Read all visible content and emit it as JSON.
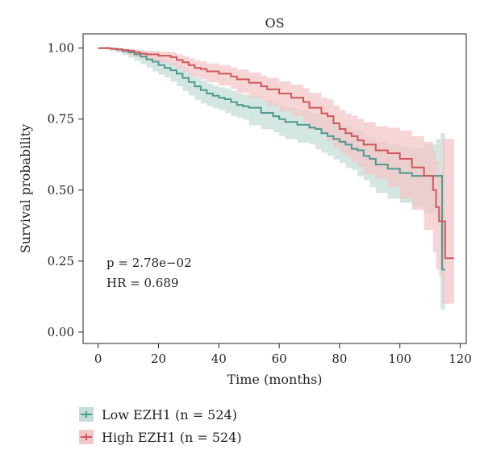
{
  "chart_data": {
    "type": "line",
    "subtype": "kaplan-meier",
    "title": "OS",
    "xlabel": "Time (months)",
    "ylabel": "Survival probability",
    "xlim": [
      -5,
      122
    ],
    "ylim": [
      -0.04,
      1.05
    ],
    "xticks": [
      0,
      20,
      40,
      60,
      80,
      100,
      120
    ],
    "yticks": [
      0.0,
      0.25,
      0.5,
      0.75,
      1.0
    ],
    "xtick_labels": [
      "0",
      "20",
      "40",
      "60",
      "80",
      "100",
      "120"
    ],
    "ytick_labels": [
      "0.00",
      "0.25",
      "0.50",
      "0.75",
      "1.00"
    ],
    "grid": false,
    "annotations": [
      "p = 2.78e−02",
      "HR = 0.689"
    ],
    "legend_position": "bottom-left",
    "series": [
      {
        "name": "Low EZH1 (n = 524)",
        "color": "#4e9a8f",
        "band_color": "#c5ddd8",
        "x": [
          0,
          4,
          6,
          8,
          10,
          12,
          14,
          16,
          18,
          20,
          22,
          24,
          26,
          28,
          30,
          32,
          34,
          36,
          38,
          40,
          42,
          44,
          46,
          48,
          50,
          54,
          58,
          60,
          62,
          66,
          70,
          72,
          74,
          76,
          78,
          80,
          82,
          84,
          86,
          88,
          90,
          92,
          96,
          100,
          104,
          108,
          112,
          113.5,
          114,
          115
        ],
        "y": [
          1.0,
          0.998,
          0.995,
          0.99,
          0.985,
          0.978,
          0.97,
          0.96,
          0.952,
          0.94,
          0.93,
          0.922,
          0.91,
          0.895,
          0.88,
          0.865,
          0.852,
          0.84,
          0.832,
          0.825,
          0.82,
          0.81,
          0.8,
          0.795,
          0.79,
          0.772,
          0.76,
          0.75,
          0.74,
          0.73,
          0.72,
          0.715,
          0.7,
          0.69,
          0.68,
          0.67,
          0.66,
          0.645,
          0.64,
          0.62,
          0.61,
          0.59,
          0.575,
          0.56,
          0.55,
          0.55,
          0.55,
          0.55,
          0.22,
          0.22
        ],
        "lower": [
          1.0,
          0.996,
          0.99,
          0.984,
          0.976,
          0.966,
          0.955,
          0.943,
          0.932,
          0.918,
          0.906,
          0.896,
          0.882,
          0.866,
          0.849,
          0.833,
          0.818,
          0.805,
          0.796,
          0.788,
          0.782,
          0.771,
          0.76,
          0.754,
          0.748,
          0.728,
          0.714,
          0.703,
          0.691,
          0.679,
          0.667,
          0.661,
          0.644,
          0.632,
          0.62,
          0.608,
          0.596,
          0.578,
          0.571,
          0.548,
          0.535,
          0.51,
          0.49,
          0.47,
          0.455,
          0.44,
          0.42,
          0.4,
          0.08,
          0.08
        ],
        "upper": [
          1.0,
          1.0,
          1.0,
          0.996,
          0.994,
          0.99,
          0.985,
          0.977,
          0.972,
          0.962,
          0.954,
          0.948,
          0.938,
          0.924,
          0.911,
          0.897,
          0.886,
          0.875,
          0.868,
          0.862,
          0.858,
          0.849,
          0.84,
          0.836,
          0.832,
          0.816,
          0.806,
          0.797,
          0.789,
          0.781,
          0.773,
          0.769,
          0.756,
          0.748,
          0.74,
          0.732,
          0.724,
          0.712,
          0.709,
          0.692,
          0.685,
          0.67,
          0.66,
          0.65,
          0.645,
          0.66,
          0.68,
          0.7,
          0.7,
          0.7
        ]
      },
      {
        "name": "High EZH1 (n = 524)",
        "color": "#d0575c",
        "band_color": "#f2c7c7",
        "x": [
          0,
          4,
          6,
          8,
          10,
          12,
          14,
          16,
          20,
          24,
          26,
          28,
          30,
          32,
          34,
          36,
          40,
          44,
          46,
          50,
          54,
          56,
          60,
          64,
          68,
          70,
          74,
          76,
          78,
          80,
          82,
          84,
          86,
          88,
          92,
          96,
          100,
          104,
          108,
          111,
          112,
          113,
          114,
          115,
          118
        ],
        "y": [
          1.0,
          0.998,
          0.996,
          0.993,
          0.99,
          0.985,
          0.98,
          0.978,
          0.973,
          0.968,
          0.958,
          0.95,
          0.94,
          0.93,
          0.926,
          0.918,
          0.91,
          0.9,
          0.89,
          0.878,
          0.865,
          0.855,
          0.84,
          0.825,
          0.81,
          0.79,
          0.77,
          0.76,
          0.735,
          0.715,
          0.7,
          0.69,
          0.675,
          0.66,
          0.64,
          0.63,
          0.61,
          0.58,
          0.55,
          0.5,
          0.44,
          0.39,
          0.39,
          0.26,
          0.26
        ],
        "lower": [
          1.0,
          0.996,
          0.992,
          0.987,
          0.982,
          0.975,
          0.968,
          0.964,
          0.957,
          0.95,
          0.938,
          0.928,
          0.916,
          0.904,
          0.899,
          0.89,
          0.88,
          0.868,
          0.856,
          0.842,
          0.827,
          0.815,
          0.797,
          0.779,
          0.761,
          0.738,
          0.714,
          0.701,
          0.673,
          0.649,
          0.631,
          0.618,
          0.599,
          0.581,
          0.555,
          0.538,
          0.51,
          0.47,
          0.43,
          0.36,
          0.28,
          0.22,
          0.2,
          0.1,
          0.1
        ],
        "upper": [
          1.0,
          1.0,
          1.0,
          0.998,
          0.997,
          0.994,
          0.991,
          0.99,
          0.988,
          0.985,
          0.978,
          0.972,
          0.964,
          0.956,
          0.953,
          0.946,
          0.94,
          0.932,
          0.924,
          0.914,
          0.903,
          0.895,
          0.883,
          0.871,
          0.859,
          0.842,
          0.826,
          0.819,
          0.798,
          0.782,
          0.77,
          0.762,
          0.751,
          0.739,
          0.725,
          0.72,
          0.71,
          0.69,
          0.67,
          0.64,
          0.6,
          0.56,
          0.68,
          0.68,
          0.68
        ]
      }
    ]
  }
}
